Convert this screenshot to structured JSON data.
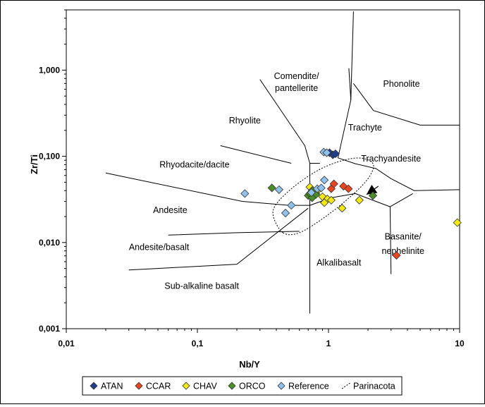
{
  "chart_data": {
    "type": "scatter",
    "xlabel": "Nb/Y",
    "ylabel": "Zr/Ti",
    "x_scale": "log",
    "y_scale": "log",
    "xlim": [
      0.01,
      10
    ],
    "ylim": [
      0.001,
      5
    ],
    "x_ticks": [
      {
        "value": 0.01,
        "label": "0,01"
      },
      {
        "value": 0.1,
        "label": "0,1"
      },
      {
        "value": 1,
        "label": "1"
      },
      {
        "value": 10,
        "label": "10"
      }
    ],
    "y_ticks": [
      {
        "value": 0.001,
        "label": "0,001"
      },
      {
        "value": 0.01,
        "label": "0,010"
      },
      {
        "value": 0.1,
        "label": "0,100"
      },
      {
        "value": 1,
        "label": "1,000"
      }
    ],
    "grid": false,
    "legend_position": "bottom",
    "field_labels": [
      {
        "text": "Comendite/",
        "x": 0.57,
        "y": 0.79
      },
      {
        "text": "pantellerite",
        "x": 0.57,
        "y": 0.57
      },
      {
        "text": "Phonolite",
        "x": 3.6,
        "y": 0.64
      },
      {
        "text": "Rhyolite",
        "x": 0.23,
        "y": 0.24
      },
      {
        "text": "Trachyte",
        "x": 1.9,
        "y": 0.2
      },
      {
        "text": "Rhyodacite/dacite",
        "x": 0.095,
        "y": 0.074
      },
      {
        "text": "Trachyandesite",
        "x": 3.0,
        "y": 0.087
      },
      {
        "text": "Andesite",
        "x": 0.062,
        "y": 0.022
      },
      {
        "text": "Basanite/",
        "x": 3.7,
        "y": 0.0108
      },
      {
        "text": "nephelinite",
        "x": 3.7,
        "y": 0.0074
      },
      {
        "text": "Andesite/basalt",
        "x": 0.051,
        "y": 0.0082
      },
      {
        "text": "Alkalibasalt",
        "x": 1.2,
        "y": 0.0054
      },
      {
        "text": "Sub-alkaline basalt",
        "x": 0.108,
        "y": 0.0029
      }
    ],
    "boundaries": [
      [
        [
          0.02,
          0.064
        ],
        [
          0.22,
          0.03
        ],
        [
          0.5,
          0.027
        ],
        [
          0.72,
          0.027
        ]
      ],
      [
        [
          0.15,
          0.133
        ],
        [
          0.52,
          0.083
        ]
      ],
      [
        [
          0.3,
          0.78
        ],
        [
          0.66,
          0.133
        ]
      ],
      [
        [
          0.66,
          0.133
        ],
        [
          0.72,
          0.083
        ],
        [
          0.86,
          0.083
        ]
      ],
      [
        [
          0.72,
          0.083
        ],
        [
          0.72,
          0.0015
        ]
      ],
      [
        [
          0.72,
          0.027
        ],
        [
          1.05,
          0.033
        ],
        [
          1.6,
          0.037
        ]
      ],
      [
        [
          0.06,
          0.0122
        ],
        [
          0.2,
          0.013
        ],
        [
          0.6,
          0.0135
        ]
      ],
      [
        [
          0.03,
          0.0048
        ],
        [
          0.2,
          0.0056
        ],
        [
          0.7,
          0.025
        ]
      ],
      [
        [
          1.18,
          0.096
        ],
        [
          1.48,
          0.45
        ],
        [
          1.55,
          4.8
        ]
      ],
      [
        [
          1.48,
          0.45
        ],
        [
          1.43,
          1.05
        ]
      ],
      [
        [
          1.18,
          0.096
        ],
        [
          1.6,
          0.082
        ],
        [
          2.3,
          0.072
        ],
        [
          3.0,
          0.055
        ],
        [
          4.5,
          0.04
        ],
        [
          10,
          0.041
        ]
      ],
      [
        [
          1.6,
          0.037
        ],
        [
          2.95,
          0.026
        ],
        [
          3.0,
          0.0043
        ]
      ],
      [
        [
          2.95,
          0.026
        ],
        [
          4.4,
          0.037
        ]
      ],
      [
        [
          1.55,
          0.7
        ],
        [
          2.2,
          0.34
        ],
        [
          5.0,
          0.23
        ],
        [
          10,
          0.23
        ]
      ]
    ],
    "ellipse_series": {
      "name": "Parinacota",
      "style": "dotted",
      "points": [
        [
          0.45,
          0.013
        ],
        [
          0.38,
          0.02
        ],
        [
          0.4,
          0.028
        ],
        [
          0.55,
          0.045
        ],
        [
          0.85,
          0.07
        ],
        [
          1.3,
          0.09
        ],
        [
          1.8,
          0.095
        ],
        [
          2.2,
          0.08
        ],
        [
          2.0,
          0.055
        ],
        [
          1.5,
          0.035
        ],
        [
          0.95,
          0.02
        ],
        [
          0.6,
          0.013
        ],
        [
          0.45,
          0.013
        ]
      ]
    },
    "series": [
      {
        "name": "ATAN",
        "color": "#1f3f8f",
        "points": [
          [
            1.02,
            0.11
          ],
          [
            1.08,
            0.104
          ],
          [
            1.13,
            0.107
          ]
        ]
      },
      {
        "name": "CCAR",
        "color": "#e8461e",
        "points": [
          [
            1.05,
            0.042
          ],
          [
            1.1,
            0.048
          ],
          [
            1.3,
            0.045
          ],
          [
            1.42,
            0.042
          ],
          [
            3.3,
            0.0071
          ]
        ]
      },
      {
        "name": "CHAV",
        "color": "#f2ea0c",
        "points": [
          [
            0.72,
            0.044
          ],
          [
            0.82,
            0.04
          ],
          [
            0.8,
            0.037
          ],
          [
            0.9,
            0.034
          ],
          [
            0.98,
            0.032
          ],
          [
            0.93,
            0.029
          ],
          [
            1.05,
            0.031
          ],
          [
            1.27,
            0.025
          ],
          [
            1.72,
            0.031
          ],
          [
            9.6,
            0.017
          ]
        ]
      },
      {
        "name": "ORCO",
        "color": "#4a8f25",
        "points": [
          [
            0.37,
            0.043
          ],
          [
            0.7,
            0.035
          ],
          [
            0.72,
            0.037
          ],
          [
            0.75,
            0.04
          ],
          [
            0.8,
            0.036
          ],
          [
            0.75,
            0.033
          ],
          [
            2.18,
            0.035
          ]
        ]
      },
      {
        "name": "Reference",
        "color": "#8ec1ec",
        "points": [
          [
            0.23,
            0.037
          ],
          [
            0.42,
            0.041
          ],
          [
            0.52,
            0.027
          ],
          [
            0.47,
            0.022
          ],
          [
            0.74,
            0.038
          ],
          [
            0.82,
            0.042
          ],
          [
            0.88,
            0.043
          ],
          [
            0.93,
            0.053
          ],
          [
            0.92,
            0.112
          ],
          [
            0.97,
            0.11
          ]
        ]
      }
    ],
    "arrow": {
      "from": [
        2.4,
        0.045
      ],
      "to": [
        1.95,
        0.036
      ]
    },
    "legend": [
      "ATAN",
      "CCAR",
      "CHAV",
      "ORCO",
      "Reference",
      "Parinacota"
    ]
  }
}
